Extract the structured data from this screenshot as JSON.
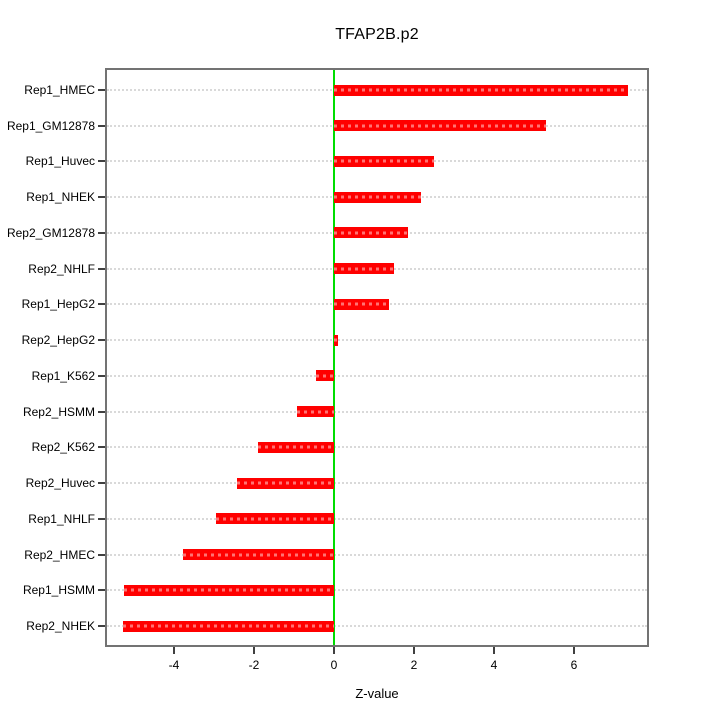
{
  "title": "TFAP2B.p2",
  "xaxis": {
    "label": "Z-value"
  },
  "colors": {
    "bar": "#FF0000",
    "zero_line": "#00DD00",
    "gridline": "#D9D9D9",
    "frame": "#737373",
    "text": "#000000"
  },
  "chart_data": {
    "type": "bar",
    "orientation": "horizontal",
    "title": "TFAP2B.p2",
    "xlabel": "Z-value",
    "ylabel": "",
    "categories": [
      "Rep1_HMEC",
      "Rep1_GM12878",
      "Rep1_Huvec",
      "Rep1_NHEK",
      "Rep2_GM12878",
      "Rep2_NHLF",
      "Rep1_HepG2",
      "Rep2_HepG2",
      "Rep1_K562",
      "Rep2_HSMM",
      "Rep2_K562",
      "Rep2_Huvec",
      "Rep1_NHLF",
      "Rep2_HMEC",
      "Rep1_HSMM",
      "Rep2_NHEK"
    ],
    "values": [
      7.36,
      5.3,
      2.51,
      2.18,
      1.86,
      1.5,
      1.38,
      0.1,
      -0.45,
      -0.93,
      -1.91,
      -2.42,
      -2.96,
      -3.77,
      -5.24,
      -5.27
    ],
    "xticks": [
      -4,
      -2,
      0,
      2,
      4,
      6
    ],
    "xtick_labels": [
      "-4",
      "-2",
      "0",
      "2",
      "4",
      "6"
    ],
    "xlim": [
      -5.675,
      7.825
    ],
    "grid": "dotted horizontal per category",
    "zero_reference_line": 0,
    "legend": "none"
  }
}
